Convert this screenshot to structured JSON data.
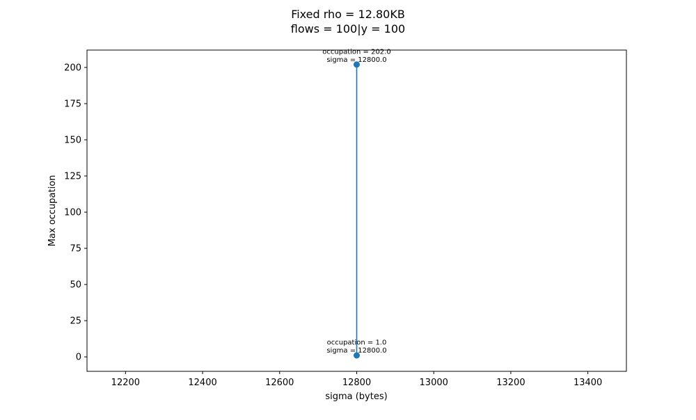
{
  "chart_data": {
    "type": "line",
    "title_lines": [
      "Fixed rho = 12.80KB",
      "flows = 100|y = 100"
    ],
    "xlabel": "sigma (bytes)",
    "ylabel": "Max occupation",
    "xlim": [
      12100,
      13500
    ],
    "ylim": [
      -10,
      212
    ],
    "x_ticks": [
      12200,
      12400,
      12600,
      12800,
      13000,
      13200,
      13400
    ],
    "y_ticks": [
      0,
      25,
      50,
      75,
      100,
      125,
      150,
      175,
      200
    ],
    "grid": false,
    "legend": "none",
    "series": [
      {
        "color": "#1f77b4",
        "points": [
          {
            "x": 12800,
            "y": 202.0
          },
          {
            "x": 12800,
            "y": 1.0
          }
        ]
      }
    ],
    "annotations": [
      {
        "x": 12800,
        "y": 202.0,
        "lines": [
          "occupation = 202.0",
          "sigma = 12800.0"
        ]
      },
      {
        "x": 12800,
        "y": 1.0,
        "lines": [
          "occupation = 1.0",
          "sigma = 12800.0"
        ]
      }
    ]
  }
}
